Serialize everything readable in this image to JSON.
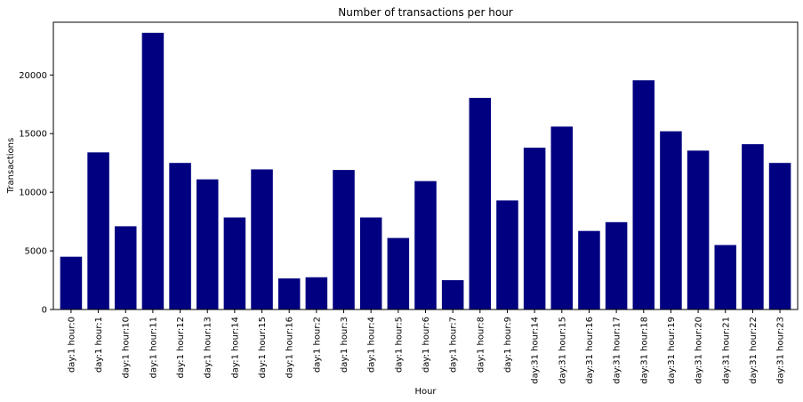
{
  "chart_data": {
    "type": "bar",
    "title": "Number of transactions per hour",
    "xlabel": "Hour",
    "ylabel": "Transactions",
    "ylim": [
      0,
      24500
    ],
    "yticks": [
      0,
      5000,
      10000,
      15000,
      20000
    ],
    "bar_color": "#000080",
    "grid": false,
    "categories": [
      "day:1 hour:0",
      "day:1 hour:1",
      "day:1 hour:10",
      "day:1 hour:11",
      "day:1 hour:12",
      "day:1 hour:13",
      "day:1 hour:14",
      "day:1 hour:15",
      "day:1 hour:16",
      "day:1 hour:2",
      "day:1 hour:3",
      "day:1 hour:4",
      "day:1 hour:5",
      "day:1 hour:6",
      "day:1 hour:7",
      "day:1 hour:8",
      "day:1 hour:9",
      "day:31 hour:14",
      "day:31 hour:15",
      "day:31 hour:16",
      "day:31 hour:17",
      "day:31 hour:18",
      "day:31 hour:19",
      "day:31 hour:20",
      "day:31 hour:21",
      "day:31 hour:22",
      "day:31 hour:23"
    ],
    "values": [
      4500,
      13400,
      7100,
      23600,
      12500,
      11100,
      7850,
      11950,
      2650,
      2750,
      11900,
      7850,
      6100,
      10950,
      2500,
      18050,
      9300,
      13800,
      15600,
      6700,
      7450,
      19550,
      15200,
      13550,
      5500,
      14100,
      12500
    ]
  }
}
